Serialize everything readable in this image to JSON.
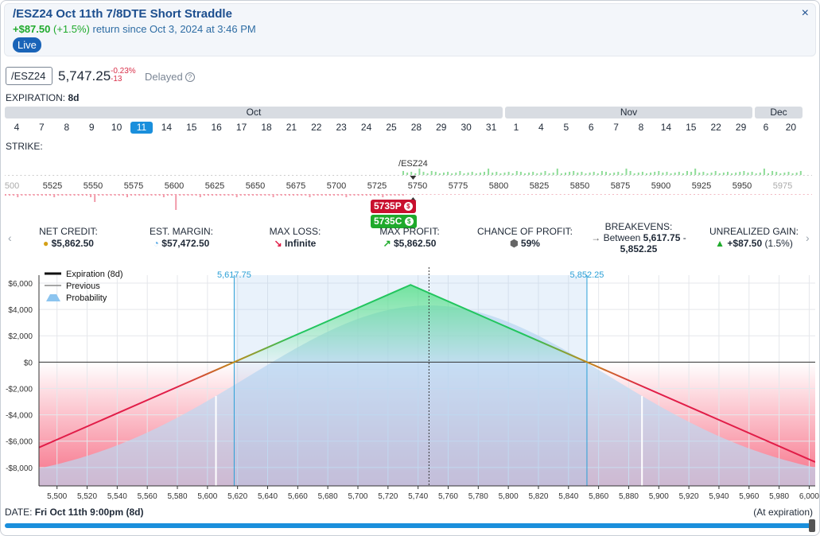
{
  "header": {
    "title": "/ESZ24 Oct 11th 7/8DTE Short Straddle",
    "return_amount": "+$87.50",
    "return_pct": "(+1.5%)",
    "return_text": "return since Oct 3, 2024 at 3:46 PM",
    "live_label": "Live",
    "close_symbol": "×"
  },
  "quote": {
    "symbol": "/ESZ24",
    "price": "5,747.25",
    "change_pct": "-0.23%",
    "change_abs": "-13",
    "delayed_label": "Delayed",
    "help_symbol": "?"
  },
  "expiration": {
    "label": "EXPIRATION:",
    "value": "8d",
    "months": [
      "Oct",
      "Nov",
      "Dec"
    ],
    "days": [
      "4",
      "7",
      "8",
      "9",
      "10",
      "11",
      "14",
      "15",
      "16",
      "17",
      "18",
      "21",
      "22",
      "23",
      "24",
      "25",
      "28",
      "29",
      "30",
      "31",
      "1",
      "4",
      "5",
      "6",
      "7",
      "8",
      "14",
      "15",
      "22",
      "29",
      "6",
      "20"
    ],
    "selected_day_index": 5
  },
  "strike": {
    "label": "STRIKE:",
    "underlying_label": "/ESZ24",
    "ticks": [
      "500",
      "5525",
      "5550",
      "5575",
      "5600",
      "5625",
      "5650",
      "5675",
      "5700",
      "5725",
      "5750",
      "5775",
      "5800",
      "5825",
      "5850",
      "5875",
      "5900",
      "5925",
      "5950",
      "5975"
    ],
    "put_tag": "5735P",
    "call_tag": "5735C",
    "tag_badge": "$"
  },
  "stats": {
    "net_credit": {
      "label": "NET CREDIT:",
      "value": "$5,862.50"
    },
    "est_margin": {
      "label": "EST. MARGIN:",
      "value": "$57,472.50"
    },
    "max_loss": {
      "label": "MAX LOSS:",
      "value": "Infinite"
    },
    "max_profit": {
      "label": "MAX PROFIT:",
      "value": "$5,862.50"
    },
    "chance": {
      "label": "CHANCE OF PROFIT:",
      "value": "59%"
    },
    "breakevens": {
      "label": "BREAKEVENS:",
      "value_line1": "Between",
      "low": "5,617.75",
      "sep": "-",
      "high": "5,852.25"
    },
    "unrealized": {
      "label": "UNREALIZED GAIN:",
      "value": "+$87.50",
      "pct": "(1.5%)"
    }
  },
  "legend": {
    "expiration": "Expiration (8d)",
    "previous": "Previous",
    "probability": "Probability"
  },
  "chart_data": {
    "type": "line",
    "title": "",
    "xlabel": "",
    "ylabel": "",
    "xlim": [
      5488,
      6004
    ],
    "ylim": [
      -9400,
      6600
    ],
    "x_ticks": [
      5500,
      5520,
      5540,
      5560,
      5580,
      5600,
      5620,
      5640,
      5660,
      5680,
      5700,
      5720,
      5740,
      5760,
      5780,
      5800,
      5820,
      5840,
      5860,
      5880,
      5900,
      5920,
      5940,
      5960,
      5980,
      6000
    ],
    "x_tick_labels": [
      "5,500",
      "5,520",
      "5,540",
      "5,560",
      "5,580",
      "5,600",
      "5,620",
      "5,640",
      "5,660",
      "5,680",
      "5,700",
      "5,720",
      "5,740",
      "5,760",
      "5,780",
      "5,800",
      "5,820",
      "5,840",
      "5,860",
      "5,880",
      "5,900",
      "5,920",
      "5,940",
      "5,960",
      "5,980",
      "6,000"
    ],
    "y_ticks": [
      6000,
      4000,
      2000,
      0,
      -2000,
      -4000,
      -6000,
      -8000
    ],
    "y_tick_labels": [
      "$6,000",
      "$4,000",
      "$2,000",
      "$0",
      "-$2,000",
      "-$4,000",
      "-$6,000",
      "-$8,000"
    ],
    "series": [
      {
        "name": "Expiration (8d)",
        "x": [
          5488,
          5617.75,
          5735,
          5852.25,
          6004
        ],
        "y": [
          -6487.5,
          0,
          5862.5,
          0,
          -7587.5
        ]
      }
    ],
    "breakeven_markers": [
      {
        "x": 5617.75,
        "label": "5,617.75"
      },
      {
        "x": 5852.25,
        "label": "5,852.25"
      }
    ],
    "current_price": 5747.25,
    "probability_center": 5747.25,
    "probability_sigma": 120,
    "grid": true,
    "legend_position": "top-left"
  },
  "footer": {
    "date_label": "DATE:",
    "date_value": "Fri Oct 11th 9:00pm (8d)",
    "at_expiration": "(At expiration)"
  },
  "colors": {
    "profit": "#22c55e",
    "loss": "#e11d48",
    "accent": "#1a8fdc",
    "breakeven": "#2a9fd6"
  }
}
